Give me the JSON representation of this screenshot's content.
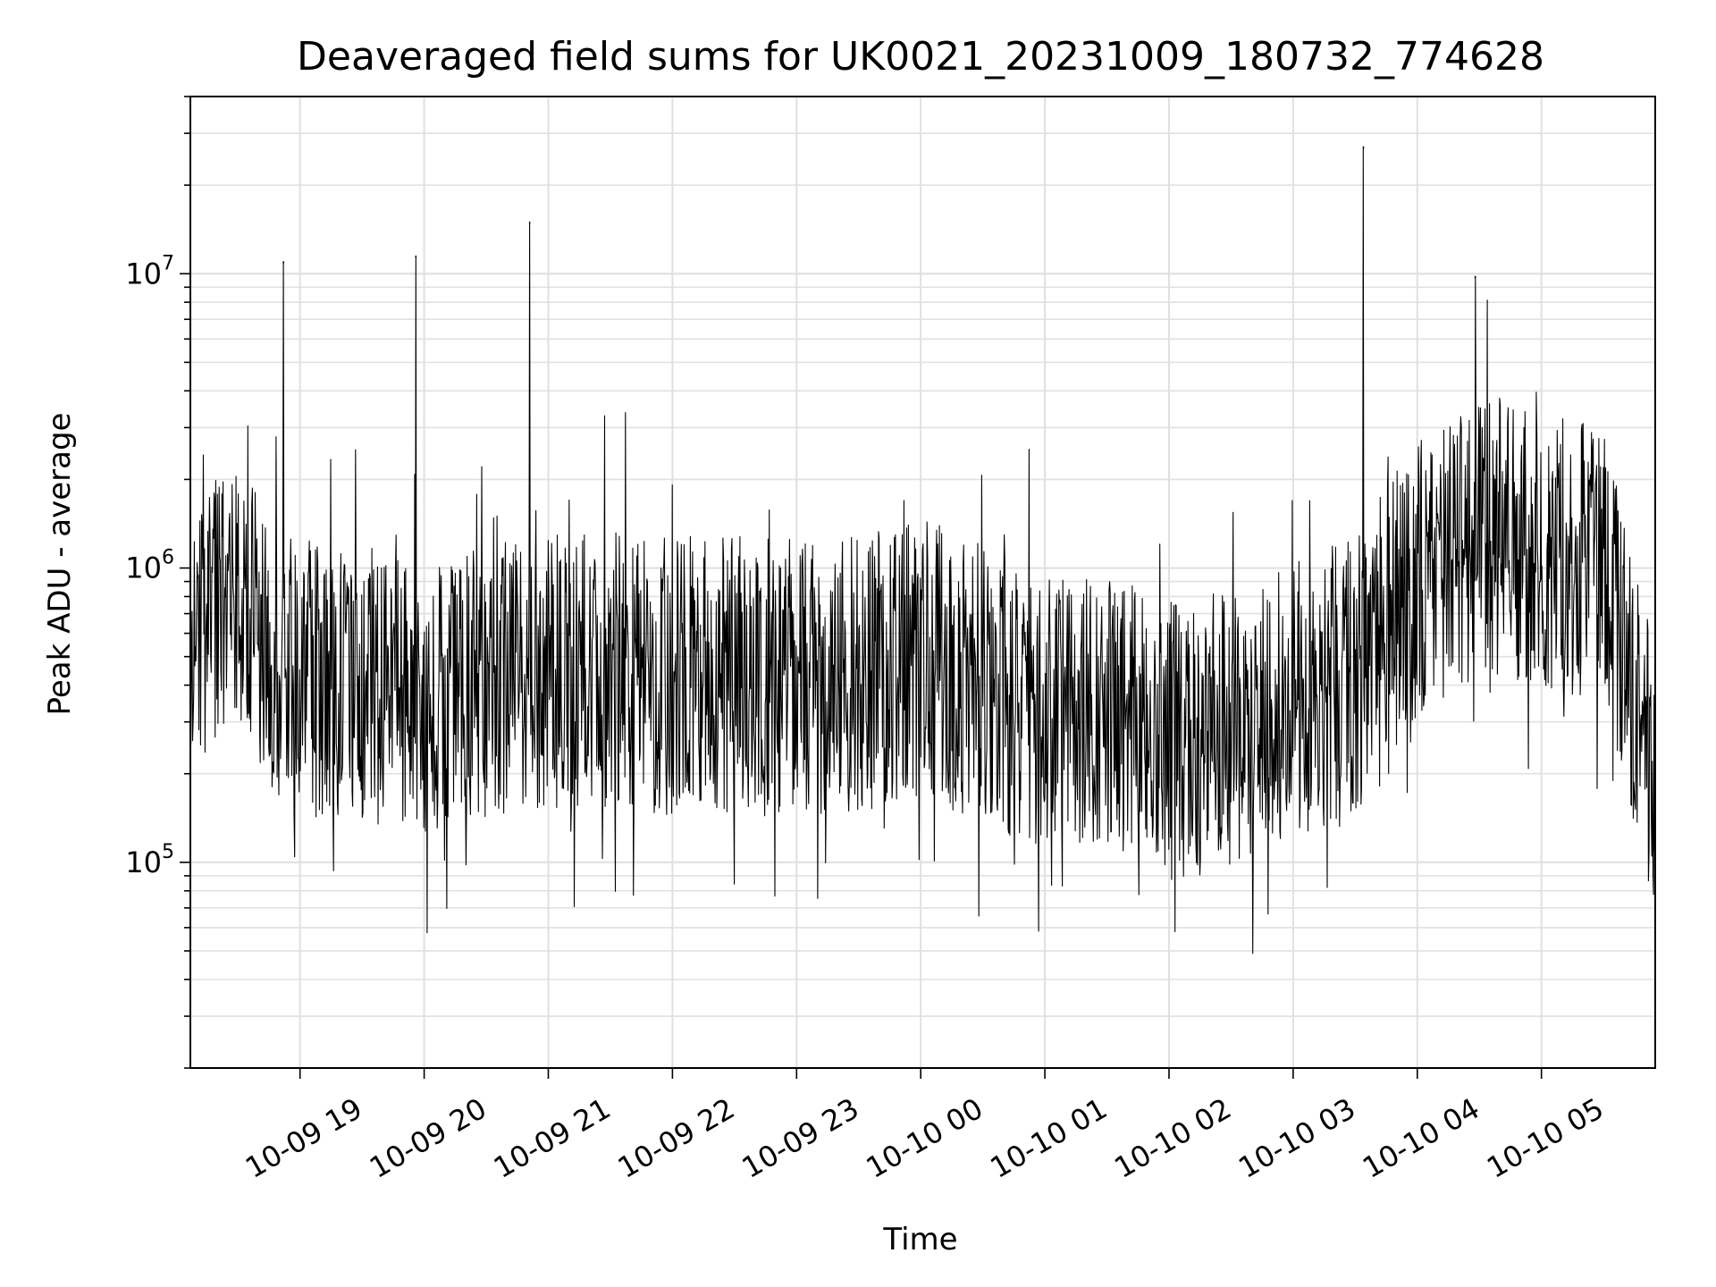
{
  "chart_data": {
    "type": "line",
    "title": "Deaveraged field sums for UK0021_20231009_180732_774628",
    "xlabel": "Time",
    "ylabel": "Peak ADU - average",
    "yscale": "log",
    "ylim": [
      20000,
      40000000
    ],
    "xlim": [
      "2023-10-09 18:07",
      "2023-10-10 05:55"
    ],
    "grid": true,
    "x_ticks": [
      "10-09 19",
      "10-09 20",
      "10-09 21",
      "10-09 22",
      "10-09 23",
      "10-10 00",
      "10-10 01",
      "10-10 02",
      "10-10 03",
      "10-10 04",
      "10-10 05"
    ],
    "y_ticks": [
      {
        "base": "10",
        "exp": "5",
        "value": 100000
      },
      {
        "base": "10",
        "exp": "6",
        "value": 1000000
      },
      {
        "base": "10",
        "exp": "7",
        "value": 10000000
      }
    ],
    "line_color": "#000000",
    "grid_color": "#e0e0e0",
    "series": [
      {
        "x": [
          "2023-10-09 18:07",
          "2023-10-09 18:30",
          "2023-10-09 18:45",
          "2023-10-09 19:00",
          "2023-10-09 19:30",
          "2023-10-09 20:00",
          "2023-10-09 20:30",
          "2023-10-09 21:00",
          "2023-10-09 21:30",
          "2023-10-09 22:00",
          "2023-10-09 22:30",
          "2023-10-09 23:00",
          "2023-10-09 23:30",
          "2023-10-10 00:00",
          "2023-10-10 00:30",
          "2023-10-10 01:00",
          "2023-10-10 01:30",
          "2023-10-10 02:00",
          "2023-10-10 02:30",
          "2023-10-10 03:00",
          "2023-10-10 03:30",
          "2023-10-10 04:00",
          "2023-10-10 04:30",
          "2023-10-10 05:00",
          "2023-10-10 05:30",
          "2023-10-10 05:55"
        ],
        "y": [
          600000,
          900000,
          450000,
          420000,
          400000,
          380000,
          420000,
          450000,
          450000,
          430000,
          430000,
          420000,
          430000,
          500000,
          400000,
          330000,
          330000,
          260000,
          280000,
          350000,
          450000,
          900000,
          1300000,
          1200000,
          1000000,
          180000
        ]
      }
    ],
    "spikes": [
      {
        "x": "2023-10-09 18:52",
        "y": 11000000
      },
      {
        "x": "2023-10-09 19:56",
        "y": 11500000
      },
      {
        "x": "2023-10-09 20:51",
        "y": 15000000
      },
      {
        "x": "2023-10-10 03:34",
        "y": 27000000
      },
      {
        "x": "2023-10-10 04:28",
        "y": 9800000
      }
    ]
  }
}
